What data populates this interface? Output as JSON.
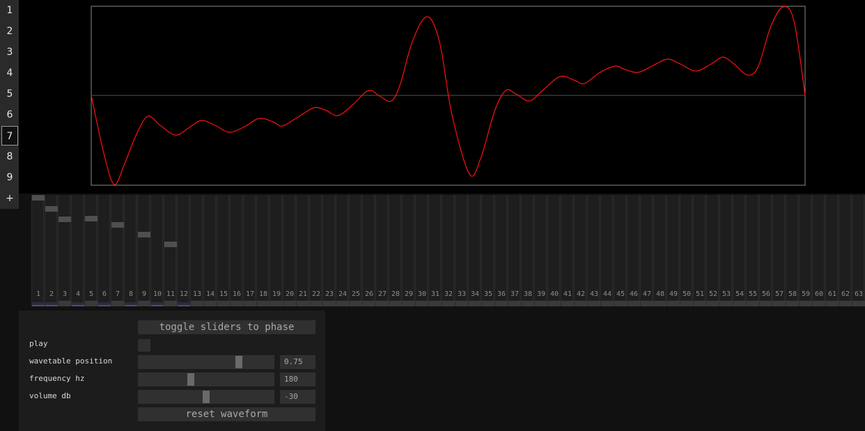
{
  "sidebar": {
    "tabs": [
      "1",
      "2",
      "3",
      "4",
      "5",
      "6",
      "7",
      "8",
      "9"
    ],
    "active_tab": "7",
    "add_label": "+"
  },
  "colors": {
    "waveform": "#ff1010",
    "frame": "#8a8a8a",
    "background": "#000000",
    "handle": "#4f4f4f"
  },
  "harmonics": {
    "count": 63,
    "amplitudes": [
      1.0,
      0.88,
      0.77,
      null,
      0.78,
      null,
      0.71,
      null,
      0.61,
      null,
      0.51,
      null
    ],
    "phase_marks": [
      1,
      2,
      4,
      6,
      8,
      10,
      12
    ]
  },
  "controls": {
    "toggle_label": "toggle sliders to phase",
    "play_label": "play",
    "wavetable": {
      "label": "wavetable position",
      "value": "0.75",
      "fraction": 0.75
    },
    "frequency": {
      "label": "frequency hz",
      "value": "180",
      "fraction": 0.38
    },
    "volume": {
      "label": "volume db",
      "value": "-30",
      "fraction": 0.5
    },
    "reset_label": "reset waveform"
  }
}
